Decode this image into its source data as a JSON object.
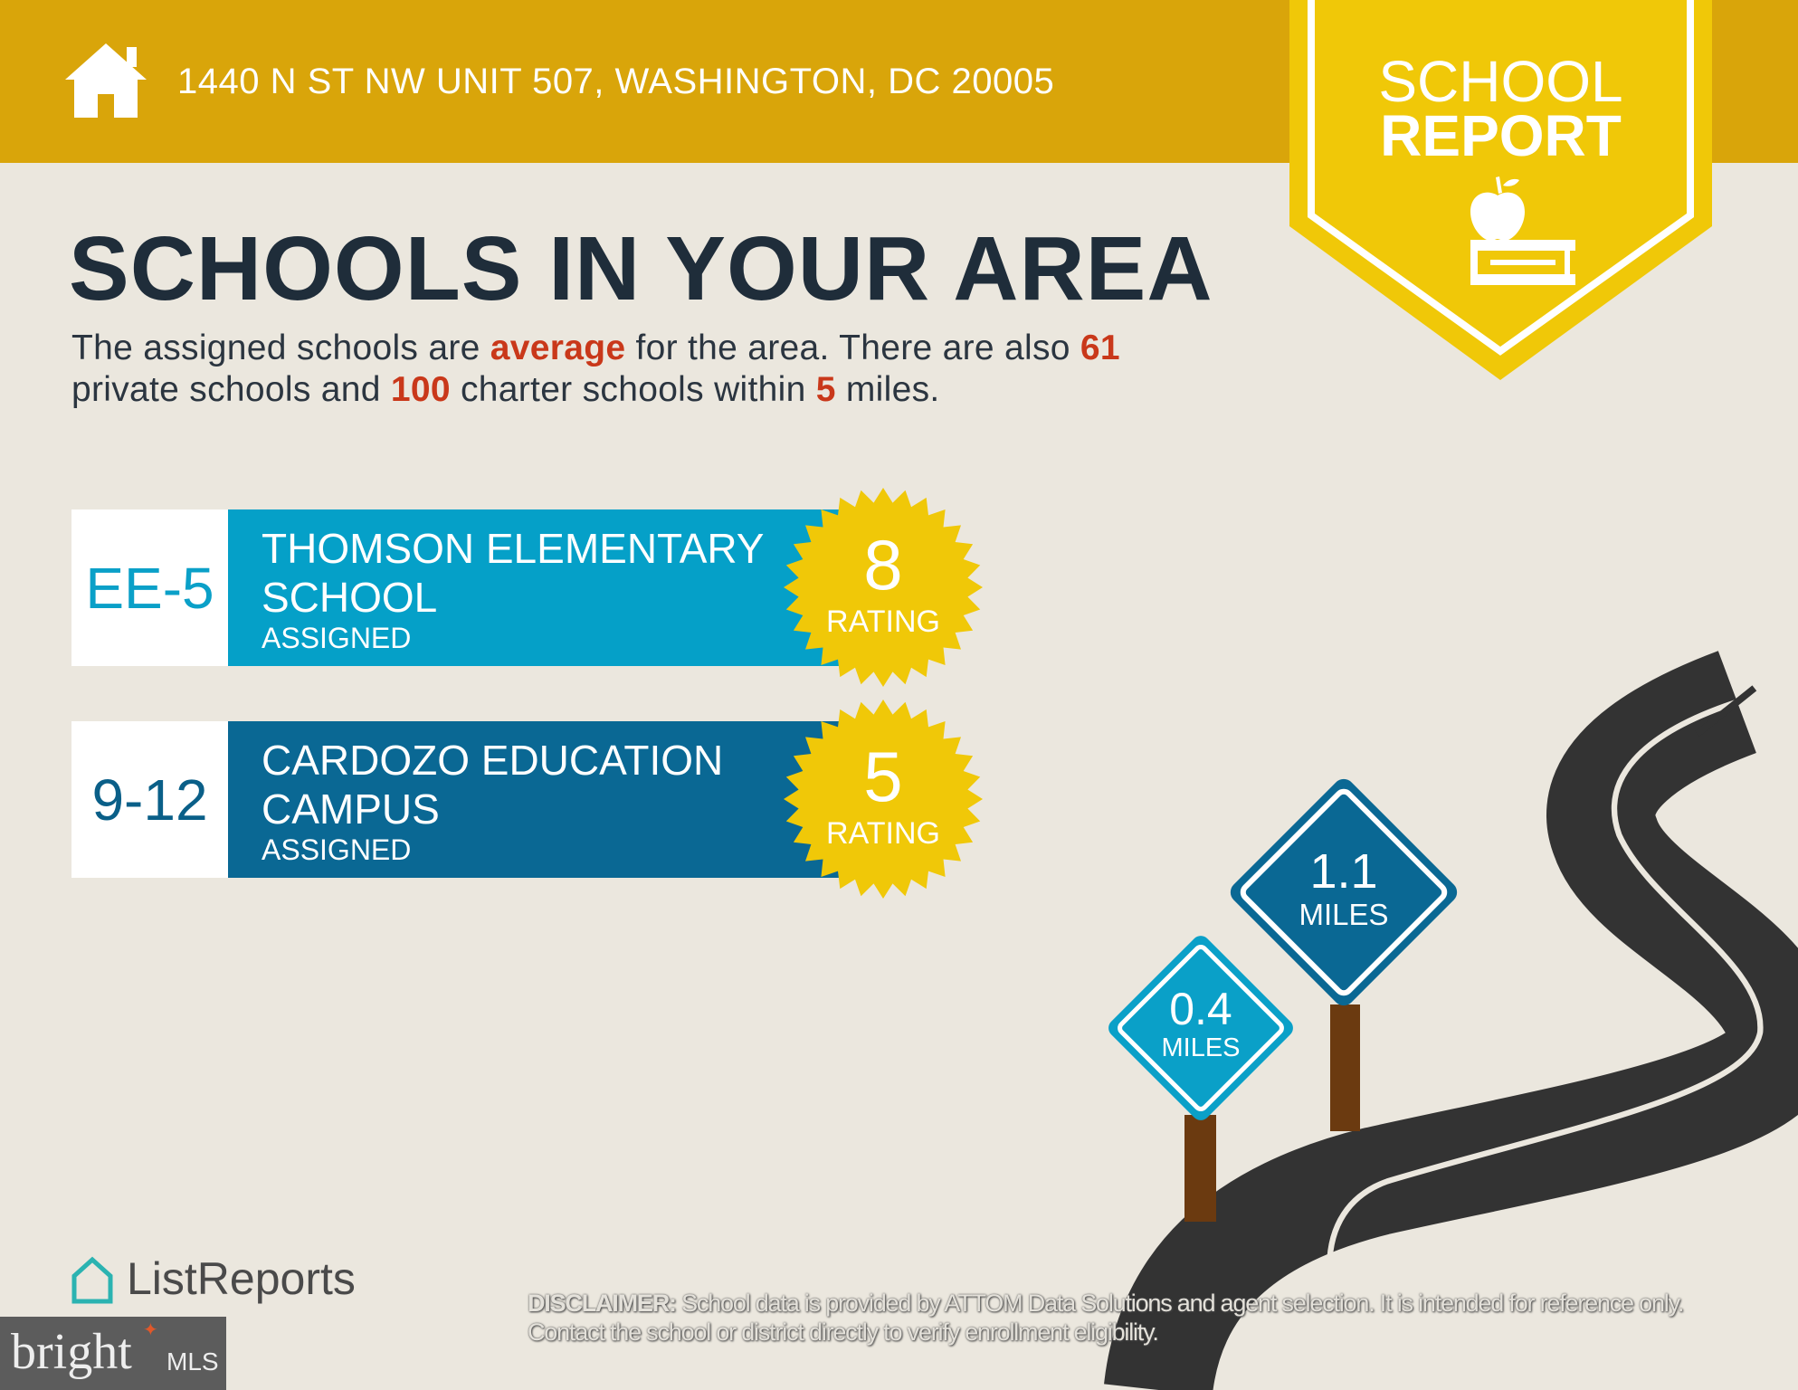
{
  "header": {
    "address": "1440 N ST NW UNIT 507, WASHINGTON, DC 20005",
    "icon": "house-icon",
    "color": "#d9a50a"
  },
  "banner": {
    "line1": "SCHOOL",
    "line2": "REPORT",
    "icon": "apple-on-book-icon",
    "color": "#f0c808"
  },
  "title": "SCHOOLS IN YOUR AREA",
  "summary": {
    "p1": "The assigned schools are ",
    "quality": "average",
    "p2": " for the area. There are also ",
    "private_count": "61",
    "p3": " private schools and ",
    "charter_count": "100",
    "p4": " charter schools within ",
    "radius": "5",
    "p5": " miles."
  },
  "schools": [
    {
      "grades": "EE-5",
      "name": "THOMSON ELEMENTARY SCHOOL",
      "status": "ASSIGNED",
      "rating": "8",
      "rating_label": "RATING",
      "color": "#05a0c8"
    },
    {
      "grades": "9-12",
      "name": "CARDOZO EDUCATION CAMPUS",
      "status": "ASSIGNED",
      "rating": "5",
      "rating_label": "RATING",
      "color": "#0a6894"
    }
  ],
  "signs": [
    {
      "distance": "0.4",
      "unit": "MILES"
    },
    {
      "distance": "1.1",
      "unit": "MILES"
    }
  ],
  "footer": {
    "listreports": "ListReports",
    "bright_logo": "bright MLS",
    "disclaimer_label": "DISCLAIMER:",
    "disclaimer_text": " School data is provided by ATTOM Data Solutions and agent selection. It is intended for reference only. Contact the school or district directly to verify enrollment eligibility."
  }
}
